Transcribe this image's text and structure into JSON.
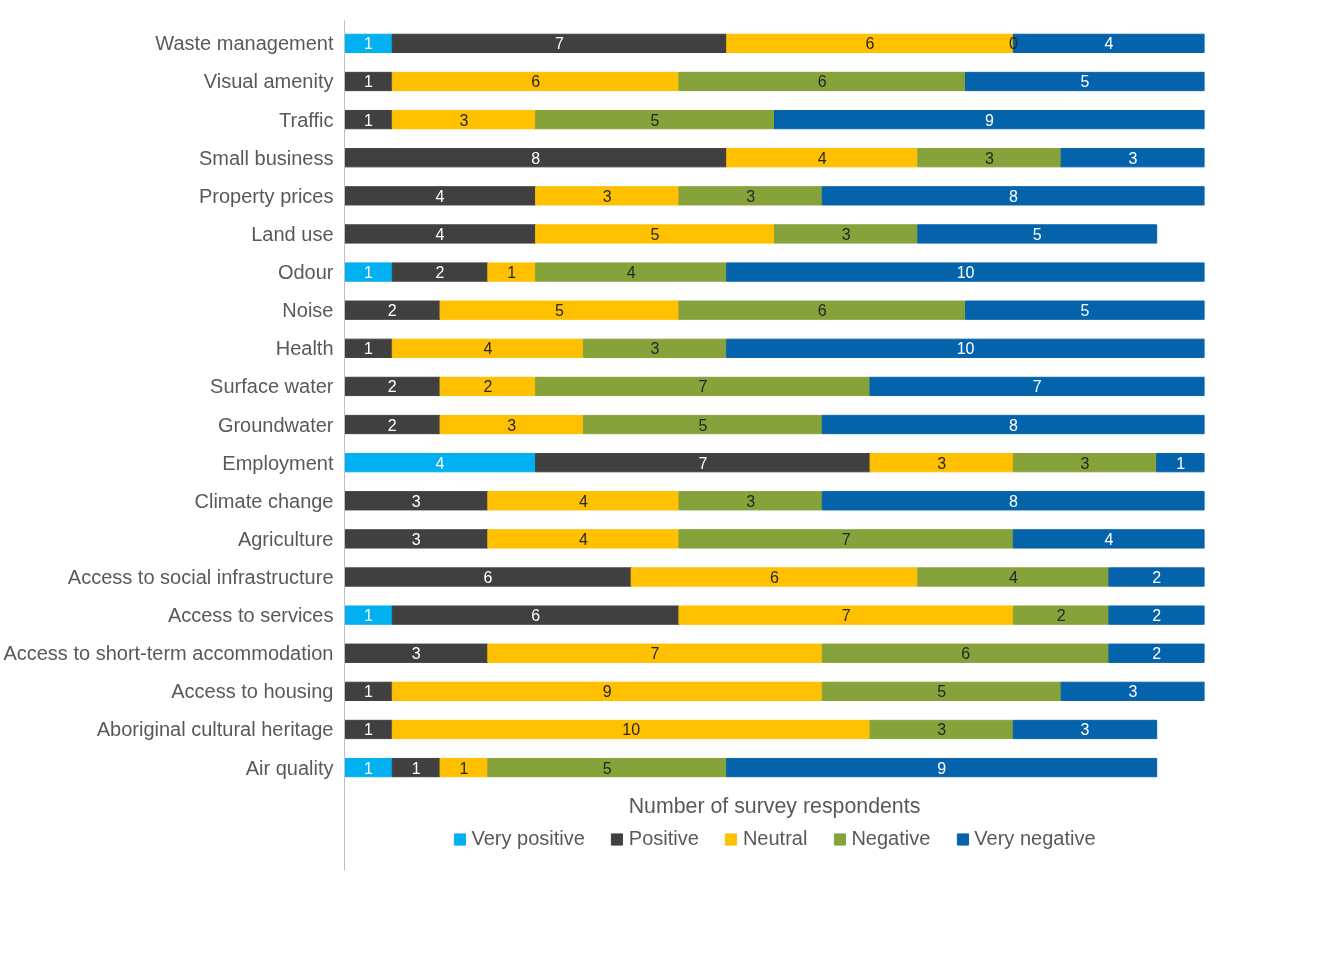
{
  "chart_data": {
    "type": "bar",
    "orientation": "horizontal",
    "stacked": true,
    "data_labels": true,
    "xlabel": "Number of survey respondents",
    "xlim": [
      0,
      18
    ],
    "tick_labels": "y",
    "grid": false,
    "legend": "bottom",
    "categories": [
      "Waste management",
      "Visual amenity",
      "Traffic",
      "Small business",
      "Property prices",
      "Land use",
      "Odour",
      "Noise",
      "Health",
      "Surface water",
      "Groundwater",
      "Employment",
      "Climate change",
      "Agriculture",
      "Access to social infrastructure",
      "Access to services",
      "Access to short-term accommodation",
      "Access to housing",
      "Aboriginal cultural heritage",
      "Air quality"
    ],
    "series": [
      {
        "name": "Very positive",
        "color": "#00b0f0",
        "values": [
          1,
          null,
          null,
          null,
          null,
          null,
          1,
          null,
          null,
          null,
          null,
          4,
          null,
          null,
          null,
          1,
          null,
          null,
          null,
          1
        ]
      },
      {
        "name": "Positive",
        "color": "#404040",
        "values": [
          7,
          1,
          1,
          8,
          4,
          4,
          2,
          2,
          1,
          2,
          2,
          7,
          3,
          3,
          6,
          6,
          3,
          1,
          1,
          1
        ]
      },
      {
        "name": "Neutral",
        "color": "#ffc000",
        "values": [
          6,
          6,
          3,
          4,
          3,
          5,
          1,
          5,
          4,
          2,
          3,
          3,
          4,
          4,
          6,
          7,
          7,
          9,
          10,
          1
        ]
      },
      {
        "name": "Negative",
        "color": "#86a23a",
        "values": [
          0,
          6,
          5,
          3,
          3,
          3,
          4,
          6,
          3,
          7,
          5,
          3,
          3,
          7,
          4,
          2,
          6,
          5,
          3,
          5
        ]
      },
      {
        "name": "Very negative",
        "color": "#0563ab",
        "values": [
          4,
          5,
          9,
          3,
          8,
          5,
          10,
          5,
          10,
          7,
          8,
          1,
          8,
          4,
          2,
          2,
          2,
          3,
          3,
          9
        ]
      }
    ]
  }
}
